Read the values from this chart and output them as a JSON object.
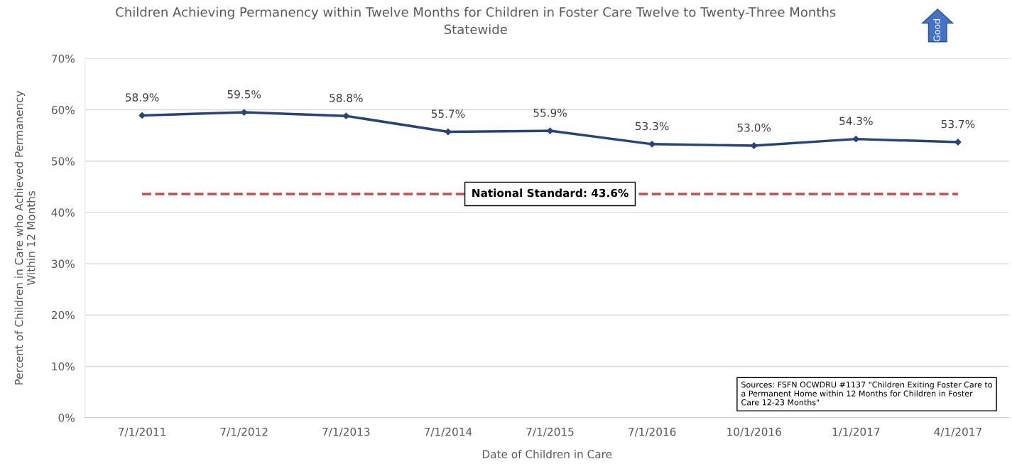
{
  "chart_data": {
    "type": "line",
    "title": "Children Achieving Permanency within Twelve Months for Children in Foster Care Twelve to Twenty-Three Months\nStatewide",
    "xlabel": "Date of Children in Care",
    "ylabel": "Percent of Children in Care who Achieved Permanency\nWithin 12 Months",
    "categories": [
      "7/1/2011",
      "7/1/2012",
      "7/1/2013",
      "7/1/2014",
      "7/1/2015",
      "7/1/2016",
      "10/1/2016",
      "1/1/2017",
      "4/1/2017"
    ],
    "series": [
      {
        "color": "#264478",
        "values": [
          58.9,
          59.5,
          58.8,
          55.7,
          55.9,
          53.3,
          53.0,
          54.3,
          53.7
        ],
        "value_labels": [
          "58.9%",
          "59.5%",
          "58.8%",
          "55.7%",
          "55.9%",
          "53.3%",
          "53.0%",
          "54.3%",
          "53.7%"
        ]
      }
    ],
    "ylim": [
      0,
      70
    ],
    "yticks": [
      {
        "value": 0,
        "label": "0%"
      },
      {
        "value": 10,
        "label": "10%"
      },
      {
        "value": 20,
        "label": "20%"
      },
      {
        "value": 30,
        "label": "30%"
      },
      {
        "value": 40,
        "label": "40%"
      },
      {
        "value": 50,
        "label": "50%"
      },
      {
        "value": 60,
        "label": "60%"
      },
      {
        "value": 70,
        "label": "70%"
      }
    ],
    "ref_lines": [
      {
        "axis": "y",
        "value": 43.6,
        "label": "National Standard: 43.6%",
        "color": "#c0504d",
        "line_style": "dashed"
      }
    ],
    "annotations": [
      "Good",
      "Sources: FSFN OCWDRU #1137 \"Children Exiting Foster Care to\na Permanent Home within 12 Months for Children in Foster\nCare 12-23 Months\""
    ],
    "grid": "y",
    "marker": "diamond",
    "line_style": "solid",
    "legend": false
  }
}
